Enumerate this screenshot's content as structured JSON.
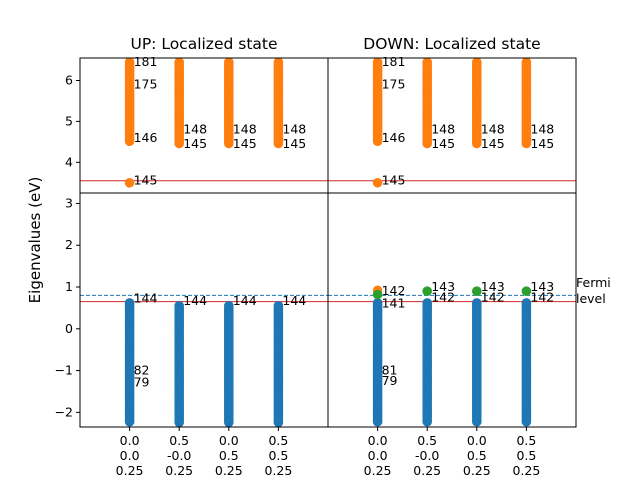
{
  "ylabel": "Eigenvalues (eV)",
  "fermi_label_line1": "Fermi",
  "fermi_label_line2": "level",
  "colors": {
    "occupied": "#1f77b4",
    "unoccupied": "#ff7f0e",
    "defect": "#2ca02c",
    "band_edge": "#d62728",
    "fermi": "#1f77b4",
    "axis": "#000000"
  },
  "chart_data": [
    {
      "type": "scatter",
      "title": "UP: Localized state",
      "ylim": [
        -2.35,
        6.55
      ],
      "yticks": [
        -2,
        -1,
        0,
        1,
        2,
        3,
        4,
        5,
        6
      ],
      "kpoints": [
        [
          "0.0",
          "0.0",
          "0.25"
        ],
        [
          "0.5",
          "-0.0",
          "0.25"
        ],
        [
          "0.0",
          "0.5",
          "0.25"
        ],
        [
          "0.5",
          "0.5",
          "0.25"
        ]
      ],
      "vbm": 0.65,
      "cbm": 3.55,
      "fermi": 0.8,
      "occupied_bands": [
        {
          "min": -2.25,
          "max": 0.62
        },
        {
          "min": -2.25,
          "max": 0.55
        },
        {
          "min": -2.25,
          "max": 0.55
        },
        {
          "min": -2.25,
          "max": 0.55
        }
      ],
      "unoccupied_bands": [
        {
          "min": 4.5,
          "max": 6.45
        },
        {
          "min": 4.42,
          "max": 6.45
        },
        {
          "min": 4.42,
          "max": 6.45
        },
        {
          "min": 4.42,
          "max": 6.45
        }
      ],
      "extra_occupied_points": [
        {
          "k": 0,
          "y": -1.1
        }
      ],
      "extra_unoccupied_points": [
        {
          "k": 0,
          "y": 3.5
        }
      ],
      "defect_points": [],
      "labels": [
        {
          "k": 0,
          "y": 6.45,
          "text": "181"
        },
        {
          "k": 0,
          "y": 5.9,
          "text": "175"
        },
        {
          "k": 0,
          "y": 4.6,
          "text": "146"
        },
        {
          "k": 0,
          "y": 3.55,
          "text": "145"
        },
        {
          "k": 0,
          "y": 0.72,
          "text": "144"
        },
        {
          "k": 0,
          "y": -1.0,
          "text": "82"
        },
        {
          "k": 0,
          "y": -1.28,
          "text": "79"
        },
        {
          "k": 1,
          "y": 4.8,
          "text": "148"
        },
        {
          "k": 1,
          "y": 4.45,
          "text": "145"
        },
        {
          "k": 1,
          "y": 0.66,
          "text": "144"
        },
        {
          "k": 2,
          "y": 4.8,
          "text": "148"
        },
        {
          "k": 2,
          "y": 4.45,
          "text": "145"
        },
        {
          "k": 2,
          "y": 0.66,
          "text": "144"
        },
        {
          "k": 3,
          "y": 4.8,
          "text": "148"
        },
        {
          "k": 3,
          "y": 4.45,
          "text": "145"
        },
        {
          "k": 3,
          "y": 0.66,
          "text": "144"
        }
      ]
    },
    {
      "type": "scatter",
      "title": "DOWN: Localized state",
      "ylim": [
        -2.35,
        6.55
      ],
      "yticks": [
        -2,
        -1,
        0,
        1,
        2,
        3,
        4,
        5,
        6
      ],
      "kpoints": [
        [
          "0.0",
          "0.0",
          "0.25"
        ],
        [
          "0.5",
          "-0.0",
          "0.25"
        ],
        [
          "0.0",
          "0.5",
          "0.25"
        ],
        [
          "0.5",
          "0.5",
          "0.25"
        ]
      ],
      "vbm": 0.65,
      "cbm": 3.55,
      "fermi": 0.8,
      "occupied_bands": [
        {
          "min": -2.25,
          "max": 0.62
        },
        {
          "min": -2.25,
          "max": 0.62
        },
        {
          "min": -2.25,
          "max": 0.62
        },
        {
          "min": -2.25,
          "max": 0.62
        }
      ],
      "unoccupied_bands": [
        {
          "min": 4.5,
          "max": 6.45
        },
        {
          "min": 4.42,
          "max": 6.45
        },
        {
          "min": 4.42,
          "max": 6.45
        },
        {
          "min": 4.42,
          "max": 6.45
        }
      ],
      "extra_occupied_points": [
        {
          "k": 0,
          "y": -1.1
        }
      ],
      "extra_unoccupied_points": [
        {
          "k": 0,
          "y": 3.5
        },
        {
          "k": 0,
          "y": 0.92
        }
      ],
      "defect_points": [
        {
          "k": 0,
          "y": 0.82
        },
        {
          "k": 1,
          "y": 0.9
        },
        {
          "k": 2,
          "y": 0.9
        },
        {
          "k": 3,
          "y": 0.9
        }
      ],
      "labels": [
        {
          "k": 0,
          "y": 6.45,
          "text": "181"
        },
        {
          "k": 0,
          "y": 5.9,
          "text": "175"
        },
        {
          "k": 0,
          "y": 4.6,
          "text": "146"
        },
        {
          "k": 0,
          "y": 3.55,
          "text": "145"
        },
        {
          "k": 0,
          "y": 0.9,
          "text": "142"
        },
        {
          "k": 0,
          "y": 0.6,
          "text": "141"
        },
        {
          "k": 0,
          "y": -1.0,
          "text": "81"
        },
        {
          "k": 0,
          "y": -1.25,
          "text": "79"
        },
        {
          "k": 1,
          "y": 4.8,
          "text": "148"
        },
        {
          "k": 1,
          "y": 4.45,
          "text": "145"
        },
        {
          "k": 1,
          "y": 1.0,
          "text": "143"
        },
        {
          "k": 1,
          "y": 0.75,
          "text": "142"
        },
        {
          "k": 2,
          "y": 4.8,
          "text": "148"
        },
        {
          "k": 2,
          "y": 4.45,
          "text": "145"
        },
        {
          "k": 2,
          "y": 1.0,
          "text": "143"
        },
        {
          "k": 2,
          "y": 0.75,
          "text": "142"
        },
        {
          "k": 3,
          "y": 4.8,
          "text": "148"
        },
        {
          "k": 3,
          "y": 4.45,
          "text": "145"
        },
        {
          "k": 3,
          "y": 1.0,
          "text": "143"
        },
        {
          "k": 3,
          "y": 0.75,
          "text": "142"
        }
      ]
    }
  ]
}
